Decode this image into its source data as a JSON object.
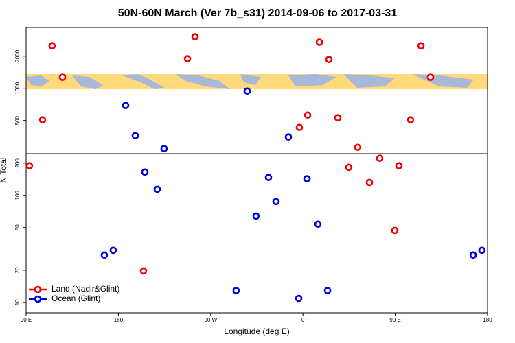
{
  "chart_data": {
    "type": "scatter",
    "title": "50N-60N March (Ver 7b_s31)   2014-09-06 to 2017-03-31",
    "xlabel": "Longitude (deg E)",
    "ylabel": "N Total",
    "log_y": true,
    "legend": "bottom-left",
    "xlim": [
      90,
      540
    ],
    "ylim": [
      8,
      3700
    ],
    "xticks": [
      {
        "value": 90,
        "label": "90 E"
      },
      {
        "value": 180,
        "label": "180"
      },
      {
        "value": 270,
        "label": "90 W"
      },
      {
        "value": 360,
        "label": "0"
      },
      {
        "value": 450,
        "label": "90 E"
      },
      {
        "value": 540,
        "label": "180"
      }
    ],
    "yticks": [
      10,
      20,
      50,
      100,
      200,
      500,
      1000,
      2000
    ],
    "series": [
      {
        "name": "Land (Nadir&Glint)",
        "color": "#ee0000",
        "x": [
          93.3,
          106.1,
          115.4,
          125.5,
          204.5,
          247.4,
          254.7,
          356.5,
          364.6,
          376,
          385.3,
          394,
          404.7,
          413.4,
          424.8,
          434.9,
          449.6,
          453.6,
          465,
          475.1,
          484.4
        ],
        "values": [
          189,
          507,
          2495,
          1267,
          19.7,
          1888,
          3027,
          431,
          562,
          2690,
          1859,
          530,
          183,
          281,
          132,
          222,
          47,
          189,
          507,
          2495,
          1267
        ]
      },
      {
        "name": "Ocean (Glint)",
        "color": "#0000dd",
        "x": [
          166.3,
          175,
          187.1,
          196.5,
          205.8,
          217.9,
          224.6,
          294.9,
          305.6,
          314.3,
          326.4,
          333.7,
          345.8,
          355.9,
          363.9,
          374.6,
          384,
          526,
          534.6
        ],
        "values": [
          27.7,
          30.7,
          692,
          361,
          165,
          114,
          273,
          12.9,
          942,
          64,
          147,
          87.5,
          351,
          10.9,
          143,
          53.8,
          12.9,
          27.7,
          30.7
        ]
      }
    ]
  }
}
